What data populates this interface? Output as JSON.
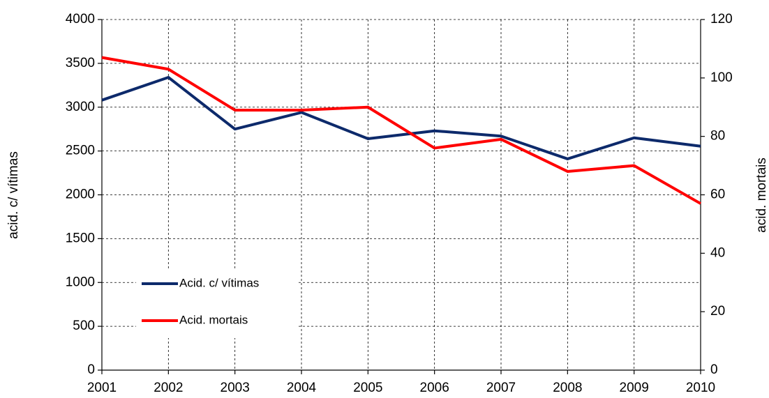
{
  "chart_data": {
    "type": "line",
    "y_label": "acid. c/ vítimas",
    "y2_label": "acid. mortais",
    "categories": [
      "2001",
      "2002",
      "2003",
      "2004",
      "2005",
      "2006",
      "2007",
      "2008",
      "2009",
      "2010"
    ],
    "series": [
      {
        "name": "Acid. c/ vítimas",
        "color": "#0d2a6b",
        "values": [
          3080,
          3340,
          2750,
          2940,
          2640,
          2730,
          2670,
          2410,
          2650,
          2555
        ]
      },
      {
        "name": "Acid. mortais",
        "color": "#ff0000",
        "axis": "y2",
        "values": [
          107,
          103,
          89,
          89,
          90,
          76,
          79,
          68,
          70,
          57
        ]
      }
    ],
    "ylim": [
      0,
      4000
    ],
    "yticks": [
      0,
      500,
      1000,
      1500,
      2000,
      2500,
      3000,
      3500,
      4000
    ],
    "y2lim": [
      0,
      120
    ],
    "y2ticks": [
      0,
      20,
      40,
      60,
      80,
      100,
      120
    ],
    "grid": true,
    "legend": "lower-left"
  }
}
